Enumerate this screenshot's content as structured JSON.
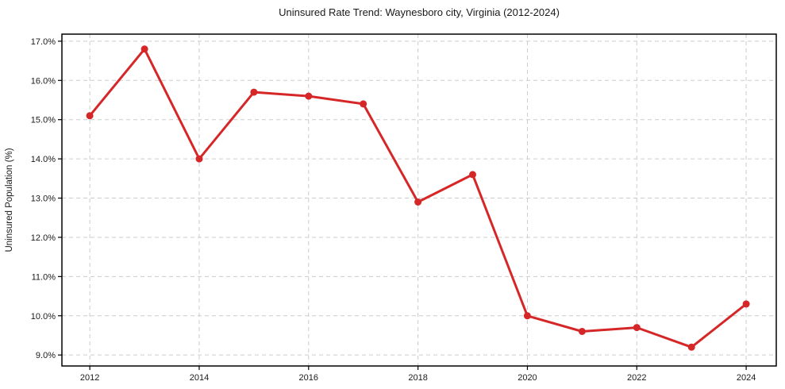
{
  "chart_data": {
    "type": "line",
    "title": "Uninsured Rate Trend: Waynesboro city, Virginia (2012-2024)",
    "ylabel": "Uninsured Population (%)",
    "xlabel": "",
    "x": [
      2012,
      2013,
      2014,
      2015,
      2016,
      2017,
      2018,
      2019,
      2020,
      2021,
      2022,
      2023,
      2024
    ],
    "values": [
      15.1,
      16.8,
      14.0,
      15.7,
      15.6,
      15.4,
      12.9,
      13.6,
      10.0,
      9.6,
      9.7,
      9.2,
      10.3
    ],
    "xticks": [
      2012,
      2014,
      2016,
      2018,
      2020,
      2022,
      2024
    ],
    "xtick_labels": [
      "2012",
      "2014",
      "2016",
      "2018",
      "2020",
      "2022",
      "2024"
    ],
    "yticks": [
      9.0,
      10.0,
      11.0,
      12.0,
      13.0,
      14.0,
      15.0,
      16.0,
      17.0
    ],
    "ytick_labels": [
      "9.0%",
      "10.0%",
      "11.0%",
      "12.0%",
      "13.0%",
      "14.0%",
      "15.0%",
      "16.0%",
      "17.0%"
    ],
    "xlim": [
      2011.49,
      2024.55
    ],
    "ylim": [
      8.72,
      17.18
    ],
    "grid": true,
    "legend": false,
    "colors": {
      "line": "#d62728",
      "marker": "#d62728",
      "grid": "#cccccc",
      "spine": "#000000",
      "text": "#1a1a1a",
      "background": "#ffffff"
    }
  }
}
